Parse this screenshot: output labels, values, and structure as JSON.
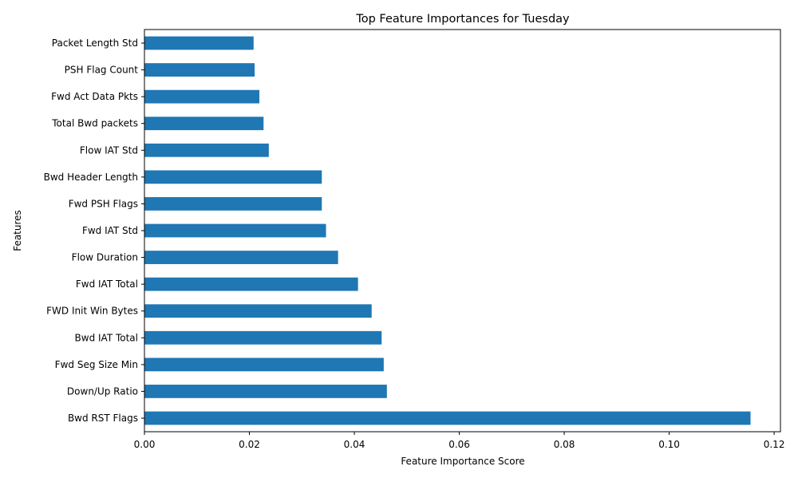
{
  "chart_data": {
    "type": "bar",
    "orientation": "horizontal",
    "title": "Top Feature Importances for Tuesday",
    "xlabel": "Feature Importance Score",
    "ylabel": "Features",
    "xlim": [
      0,
      0.1212
    ],
    "xticks": [
      0.0,
      0.02,
      0.04,
      0.06,
      0.08,
      0.1,
      0.12
    ],
    "xtick_labels": [
      "0.00",
      "0.02",
      "0.04",
      "0.06",
      "0.08",
      "0.10",
      "0.12"
    ],
    "grid": false,
    "bar_color": "#1f77b4",
    "categories": [
      "Bwd RST Flags",
      "Down/Up Ratio",
      "Fwd Seg Size Min",
      "Bwd IAT Total",
      "FWD Init Win Bytes",
      "Fwd IAT Total",
      "Flow Duration",
      "Fwd IAT Std",
      "Fwd PSH Flags",
      "Bwd Header Length",
      "Flow IAT Std",
      "Total Bwd packets",
      "Fwd Act Data Pkts",
      "PSH Flag Count",
      "Packet Length Std"
    ],
    "values": [
      0.1155,
      0.0462,
      0.0456,
      0.0452,
      0.0433,
      0.0407,
      0.0369,
      0.0346,
      0.0338,
      0.0338,
      0.0237,
      0.0227,
      0.0219,
      0.021,
      0.0208
    ]
  }
}
